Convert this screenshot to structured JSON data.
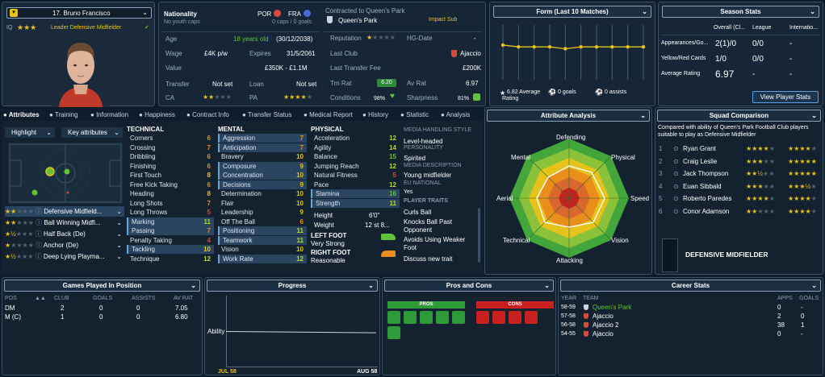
{
  "player": {
    "name": "17. Bruno Francisco",
    "role": "Leader Defensive Midfielder",
    "iq": "IQ",
    "role_stars": "★★★",
    "tick": "✔"
  },
  "nationality": {
    "label": "Nationality",
    "sub": "No youth caps",
    "n1": "POR",
    "n2": "FRA",
    "caps": "0 caps / 0 goals"
  },
  "contract": {
    "label": "Contracted to Queen's Park",
    "club": "Queen's Park",
    "status": "Impact Sub"
  },
  "age": {
    "label": "Age",
    "value": "18 years old",
    "dob": "(30/12/2038)"
  },
  "wage": {
    "label": "Wage",
    "value": "£4K p/w",
    "exp_label": "Expires",
    "exp_value": "31/5/2061"
  },
  "value": {
    "label": "Value",
    "value": "£350K - £1.1M"
  },
  "transfer": {
    "label": "Transfer",
    "value": "Not set",
    "loan_label": "Loan",
    "loan_value": "Not set"
  },
  "ca": {
    "label": "CA",
    "stars": "★★",
    "dim": "★★★",
    "pa_label": "PA",
    "pa_stars": "★★★★",
    "pa_dim": "★"
  },
  "reputation": {
    "label": "Reputation",
    "stars": "★",
    "dim": "★★★★",
    "hg_label": "HG-Date",
    "hg_value": "-"
  },
  "last_club": {
    "label": "Last Club",
    "value": "Ajaccio"
  },
  "last_fee": {
    "label": "Last Transfer Fee",
    "value": "£200K"
  },
  "trn_rat": {
    "label": "Trn Rat",
    "value": "6.20",
    "av_label": "Av Rat",
    "av_value": "6.97"
  },
  "conditions": {
    "label": "Conditions",
    "value": "98%",
    "sharp_label": "Sharpness",
    "sharp_value": "81%"
  },
  "form": {
    "title": "Form (Last 10 Matches)",
    "avg": "6.82 Average Rating",
    "goals": "0 goals",
    "assists": "0 assists"
  },
  "season": {
    "title": "Season Stats",
    "cols": [
      "Overall (Cl...",
      "League",
      "Internatio..."
    ],
    "rows": [
      {
        "label": "Appearances/Go...",
        "v1": "2(1)/0",
        "v2": "0/0",
        "v3": "-"
      },
      {
        "label": "Yellow/Red Cards",
        "v1": "1/0",
        "v2": "0/0",
        "v3": "-"
      },
      {
        "label": "Average Rating",
        "v1": "6.97",
        "v2": "-",
        "v3": "-"
      }
    ],
    "button": "View Player Stats"
  },
  "tabs": [
    "Attributes",
    "Training",
    "Information",
    "Happiness",
    "Contract Info",
    "Transfer Status",
    "Medical Report",
    "History",
    "Statistic",
    "Analysis"
  ],
  "highlight": {
    "label": "Highlight",
    "keyattr": "Key attributes"
  },
  "positions": [
    {
      "stars": "★★",
      "dim": "★★★",
      "name": "Defensive Midfield..."
    },
    {
      "stars": "★★",
      "dim": "★★★",
      "name": "Ball Winning Midfi..."
    },
    {
      "stars": "★½",
      "dim": "★★★",
      "name": "Half Back (De)"
    },
    {
      "stars": "★",
      "dim": "★★★★",
      "name": "Anchor (De)"
    },
    {
      "stars": "★½",
      "dim": "★★★",
      "name": "Deep Lying Playma..."
    }
  ],
  "technical": {
    "title": "TECHNICAL",
    "items": [
      {
        "n": "Corners",
        "v": "6"
      },
      {
        "n": "Crossing",
        "v": "7"
      },
      {
        "n": "Dribbling",
        "v": "6"
      },
      {
        "n": "Finishing",
        "v": "6"
      },
      {
        "n": "First Touch",
        "v": "8"
      },
      {
        "n": "Free Kick Taking",
        "v": "6"
      },
      {
        "n": "Heading",
        "v": "8"
      },
      {
        "n": "Long Shots",
        "v": "7"
      },
      {
        "n": "Long Throws",
        "v": "5"
      },
      {
        "n": "Marking",
        "v": "11"
      },
      {
        "n": "Passing",
        "v": "7"
      },
      {
        "n": "Penalty Taking",
        "v": "4"
      },
      {
        "n": "Tackling",
        "v": "10"
      },
      {
        "n": "Technique",
        "v": "12"
      }
    ]
  },
  "mental": {
    "title": "MENTAL",
    "items": [
      {
        "n": "Aggression",
        "v": "7"
      },
      {
        "n": "Anticipation",
        "v": "7"
      },
      {
        "n": "Bravery",
        "v": "10"
      },
      {
        "n": "Composure",
        "v": "9"
      },
      {
        "n": "Concentration",
        "v": "10"
      },
      {
        "n": "Decisions",
        "v": "9"
      },
      {
        "n": "Determination",
        "v": "10"
      },
      {
        "n": "Flair",
        "v": "10"
      },
      {
        "n": "Leadership",
        "v": "9"
      },
      {
        "n": "Off The Ball",
        "v": "6"
      },
      {
        "n": "Positioning",
        "v": "11"
      },
      {
        "n": "Teamwork",
        "v": "11"
      },
      {
        "n": "Vision",
        "v": "10"
      },
      {
        "n": "Work Rate",
        "v": "12"
      }
    ]
  },
  "physical": {
    "title": "PHYSICAL",
    "items": [
      {
        "n": "Acceleration",
        "v": "12"
      },
      {
        "n": "Agility",
        "v": "14"
      },
      {
        "n": "Balance",
        "v": "15"
      },
      {
        "n": "Jumping Reach",
        "v": "12"
      },
      {
        "n": "Natural Fitness",
        "v": "5"
      },
      {
        "n": "Pace",
        "v": "12"
      },
      {
        "n": "Stamina",
        "v": "16"
      },
      {
        "n": "Strength",
        "v": "11"
      }
    ],
    "height_label": "Height",
    "height": "6'0\"",
    "weight_label": "Weight",
    "weight": "12 st 8...",
    "lf_label": "LEFT FOOT",
    "lf": "Very Strong",
    "rf_label": "RIGHT FOOT",
    "rf": "Reasonable"
  },
  "media": {
    "title": "MEDIA HANDLING STYLE",
    "style": "Level-headed",
    "p_title": "PERSONALITY",
    "personality": "Spirited",
    "d_title": "MEDIA DESCRIPTION",
    "desc": "Young midfielder",
    "eu_title": "EU NATIONAL",
    "eu": "Yes",
    "t_title": "PLAYER TRAITS",
    "traits": [
      "Curls Ball",
      "Knocks Ball Past Opponent",
      "Avoids Using Weaker Foot",
      "Discuss new trait"
    ]
  },
  "attr_analysis": {
    "title": "Attribute Analysis",
    "labels": [
      "Defending",
      "Physical",
      "Speed",
      "Vision",
      "Attacking",
      "Technical",
      "Aerial",
      "Mental"
    ]
  },
  "squad": {
    "title": "Squad Comparison",
    "desc": "Compared with ability of Queen's Park Football Club players suitable to play as Defensive Midfielder",
    "rows": [
      {
        "rank": "1",
        "name": "Ryan Grant",
        "a": "★★★★",
        "ad": "★",
        "b": "★★★★",
        "bd": "★"
      },
      {
        "rank": "2",
        "name": "Craig Leslie",
        "a": "★★★",
        "ad": "★★",
        "b": "★★★★★",
        "bd": ""
      },
      {
        "rank": "3",
        "name": "Jack Thompson",
        "a": "★★½",
        "ad": "★★",
        "b": "★★★★★",
        "bd": ""
      },
      {
        "rank": "4",
        "name": "Euan Sibbald",
        "a": "★★★",
        "ad": "★★",
        "b": "★★★½",
        "bd": "★"
      },
      {
        "rank": "5",
        "name": "Roberto Paredes",
        "a": "★★★★",
        "ad": "★",
        "b": "★★★★",
        "bd": "★"
      },
      {
        "rank": "6",
        "name": "Conor Adamson",
        "a": "★★",
        "ad": "★★★",
        "b": "★★★★",
        "bd": "★"
      }
    ],
    "pos_label": "DEFENSIVE MIDFIELDER"
  },
  "games": {
    "title": "Games Played In Position",
    "cols": [
      "POS",
      "CLUB",
      "GOALS",
      "ASSISTS",
      "AV RAT"
    ],
    "rows": [
      {
        "pos": "DM",
        "club": "2",
        "goals": "0",
        "assists": "0",
        "av": "7.05"
      },
      {
        "pos": "M (C)",
        "club": "1",
        "goals": "0",
        "assists": "0",
        "av": "6.80"
      }
    ]
  },
  "progress": {
    "title": "Progress",
    "y": "Ability",
    "x1": "JUL 58",
    "x2": "AUG 58"
  },
  "pros": {
    "title": "Pros and Cons",
    "pros": "PROS",
    "cons": "CONS"
  },
  "career": {
    "title": "Career Stats",
    "cols": [
      "YEAR",
      "TEAM",
      "APPS",
      "GOALS"
    ],
    "rows": [
      {
        "year": "58-59",
        "team": "Queen's Park",
        "apps": "0",
        "goals": "-"
      },
      {
        "year": "57-58",
        "team": "Ajaccio",
        "apps": "2",
        "goals": "0"
      },
      {
        "year": "56-58",
        "team": "Ajaccio 2",
        "apps": "38",
        "goals": "1"
      },
      {
        "year": "54-55",
        "team": "Ajaccio",
        "apps": "0",
        "goals": "-"
      }
    ]
  },
  "chart_data": {
    "type": "line",
    "title": "Form (Last 10 Matches)",
    "values": [
      6.9,
      6.8,
      6.8,
      6.8,
      6.7,
      6.8,
      6.8,
      6.8,
      6.8,
      6.8
    ]
  }
}
